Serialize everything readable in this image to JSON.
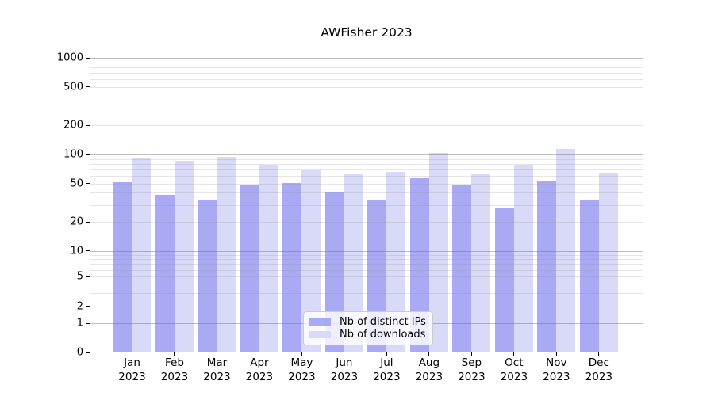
{
  "chart_data": {
    "type": "bar",
    "title": "AWFisher 2023",
    "categories": [
      "Jan 2023",
      "Feb 2023",
      "Mar 2023",
      "Apr 2023",
      "May 2023",
      "Jun 2023",
      "Jul 2023",
      "Aug 2023",
      "Sep 2023",
      "Oct 2023",
      "Nov 2023",
      "Dec 2023"
    ],
    "x_months": [
      "Jan",
      "Feb",
      "Mar",
      "Apr",
      "May",
      "Jun",
      "Jul",
      "Aug",
      "Sep",
      "Oct",
      "Nov",
      "Dec"
    ],
    "x_year": "2023",
    "series": [
      {
        "name": "Nb of distinct IPs",
        "color": "#a9a9f4",
        "values": [
          53,
          39,
          34,
          49,
          52,
          42,
          35,
          58,
          50,
          28,
          54,
          34
        ]
      },
      {
        "name": "Nb of downloads",
        "color": "#d9d9f8",
        "values": [
          92,
          88,
          96,
          79,
          70,
          64,
          67,
          105,
          63,
          79,
          116,
          66
        ]
      }
    ],
    "xlabel": "",
    "ylabel": "",
    "yscale": "symlog",
    "y_ticks": [
      1000,
      500,
      200,
      100,
      50,
      20,
      10,
      5,
      2,
      1,
      0
    ],
    "ylim": [
      0,
      1300
    ],
    "grid": true,
    "legend_position": "lower center"
  }
}
